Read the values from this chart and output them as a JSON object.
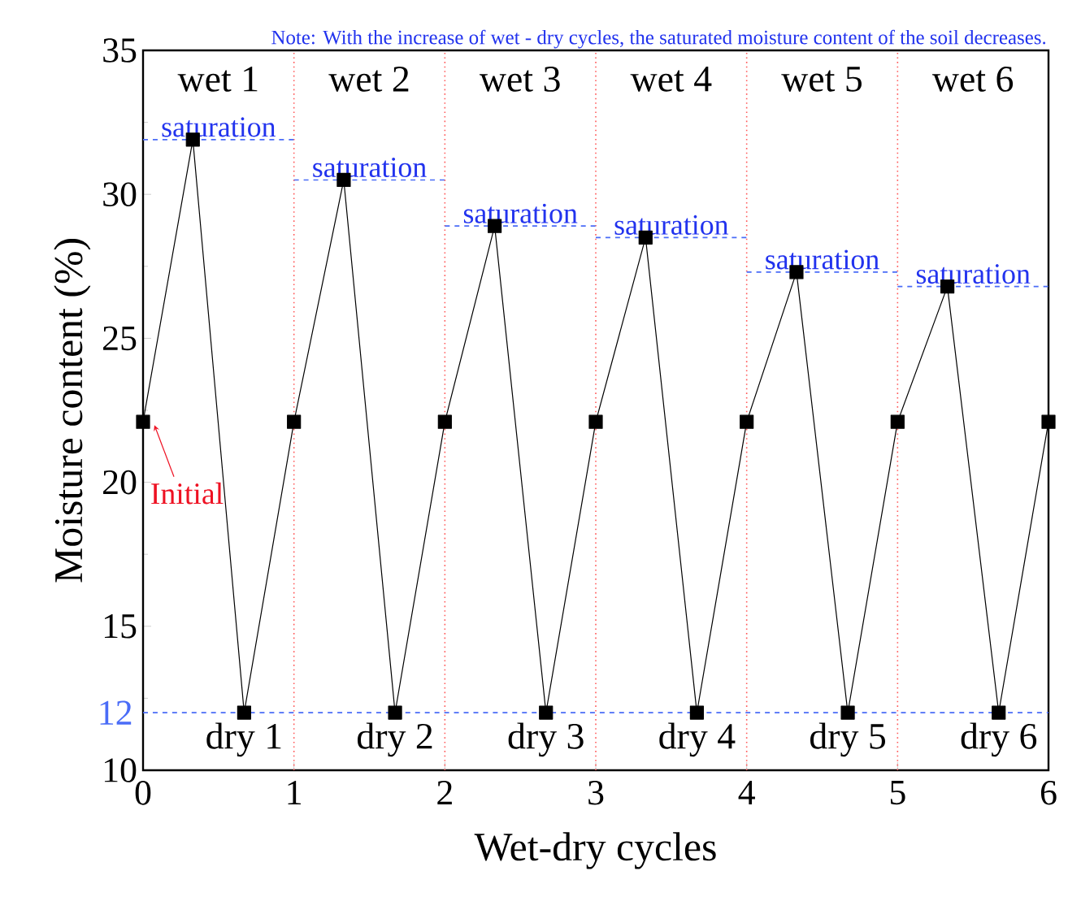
{
  "chart_data": {
    "type": "line",
    "xlabel": "Wet-dry cycles",
    "ylabel": "Moisture content (%)",
    "xlim": [
      0,
      6
    ],
    "ylim": [
      10,
      35
    ],
    "xticks": [
      0,
      1,
      2,
      3,
      4,
      5,
      6
    ],
    "yticks": [
      10,
      15,
      20,
      25,
      30,
      35
    ],
    "marker": "square",
    "line_style": "solid",
    "grid": false,
    "series": [
      {
        "color": "#000000",
        "x": [
          0,
          0.33,
          0.67,
          1,
          1.33,
          1.67,
          2,
          2.33,
          2.67,
          3,
          3.33,
          3.67,
          4,
          4.33,
          4.67,
          5,
          5.33,
          5.67,
          6
        ],
        "values": [
          22.1,
          31.9,
          12,
          22.1,
          30.5,
          12,
          22.1,
          28.9,
          12,
          22.1,
          28.5,
          12,
          22.1,
          27.3,
          12,
          22.1,
          26.8,
          12,
          22.1
        ]
      },
      {
        "type": "line",
        "marker": "none",
        "line_style": "dashed",
        "color": "#4a6cf7",
        "x": [
          0,
          1
        ],
        "values": [
          31.9,
          31.9
        ]
      },
      {
        "type": "line",
        "marker": "none",
        "line_style": "dashed",
        "color": "#4a6cf7",
        "x": [
          1,
          2
        ],
        "values": [
          30.5,
          30.5
        ]
      },
      {
        "type": "line",
        "marker": "none",
        "line_style": "dashed",
        "color": "#4a6cf7",
        "x": [
          2,
          3
        ],
        "values": [
          28.9,
          28.9
        ]
      },
      {
        "type": "line",
        "marker": "none",
        "line_style": "dashed",
        "color": "#4a6cf7",
        "x": [
          3,
          4
        ],
        "values": [
          28.5,
          28.5
        ]
      },
      {
        "type": "line",
        "marker": "none",
        "line_style": "dashed",
        "color": "#4a6cf7",
        "x": [
          4,
          5
        ],
        "values": [
          27.3,
          27.3
        ]
      },
      {
        "type": "line",
        "marker": "none",
        "line_style": "dashed",
        "color": "#4a6cf7",
        "x": [
          5,
          6
        ],
        "values": [
          26.8,
          26.8
        ]
      }
    ],
    "ref_lines": [
      {
        "axis": "y",
        "value": 12,
        "label": "12",
        "color": "#4a6cf7",
        "line_style": "dashed"
      },
      {
        "axis": "x",
        "value": 1,
        "color": "#ff5a5a",
        "line_style": "dotted"
      },
      {
        "axis": "x",
        "value": 2,
        "color": "#ff5a5a",
        "line_style": "dotted"
      },
      {
        "axis": "x",
        "value": 3,
        "color": "#ff5a5a",
        "line_style": "dotted"
      },
      {
        "axis": "x",
        "value": 4,
        "color": "#ff5a5a",
        "line_style": "dotted"
      },
      {
        "axis": "x",
        "value": 5,
        "color": "#ff5a5a",
        "line_style": "dotted"
      }
    ],
    "annotations": [
      "Note: With the increase of wet - dry cycles, the saturated moisture content of the soil decreases.",
      "wet 1",
      "wet 2",
      "wet 3",
      "wet 4",
      "wet 5",
      "wet 6",
      {
        "text": "saturation",
        "x": 0.5,
        "y": 31.9
      },
      {
        "text": "saturation",
        "x": 1.5,
        "y": 30.5
      },
      {
        "text": "saturation",
        "x": 2.5,
        "y": 28.9
      },
      {
        "text": "saturation",
        "x": 3.5,
        "y": 28.5
      },
      {
        "text": "saturation",
        "x": 4.5,
        "y": 27.3
      },
      {
        "text": "saturation",
        "x": 5.5,
        "y": 26.8
      },
      {
        "text": "dry 1",
        "x": 0.67,
        "y": 12
      },
      {
        "text": "dry 2",
        "x": 1.67,
        "y": 12
      },
      {
        "text": "dry 3",
        "x": 2.67,
        "y": 12
      },
      {
        "text": "dry 4",
        "x": 3.67,
        "y": 12
      },
      {
        "text": "dry 5",
        "x": 4.67,
        "y": 12
      },
      {
        "text": "dry 6",
        "x": 5.67,
        "y": 12
      },
      {
        "text": "Initial",
        "x": 0,
        "y": 22.1
      }
    ]
  }
}
